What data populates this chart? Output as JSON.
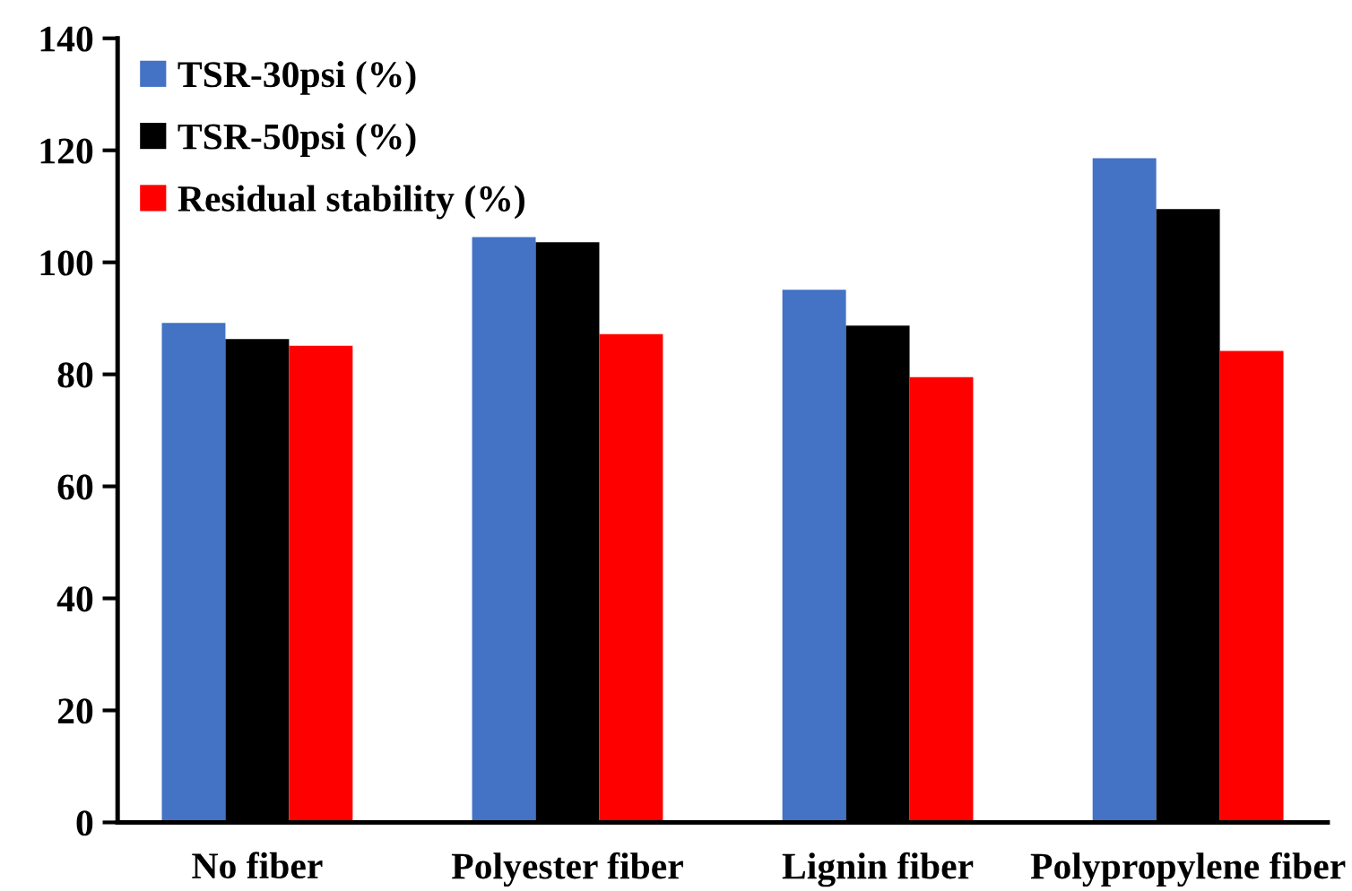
{
  "chart_data": {
    "type": "bar",
    "categories": [
      "No fiber",
      "Polyester fiber",
      "Lignin fiber",
      "Polypropylene fiber"
    ],
    "series": [
      {
        "name": "TSR-30psi (%)",
        "color": "#4472c4",
        "values": [
          89.2,
          104.5,
          95.1,
          118.6
        ]
      },
      {
        "name": "TSR-50psi (%)",
        "color": "#000000",
        "values": [
          86.3,
          103.6,
          88.7,
          109.5
        ]
      },
      {
        "name": "Residual stability (%)",
        "color": "#ff0000",
        "values": [
          85.1,
          87.2,
          79.5,
          84.2
        ]
      }
    ],
    "ylim": [
      0,
      140
    ],
    "yticks": [
      0,
      20,
      40,
      60,
      80,
      100,
      120,
      140
    ],
    "grid": false,
    "legend": "top left"
  }
}
